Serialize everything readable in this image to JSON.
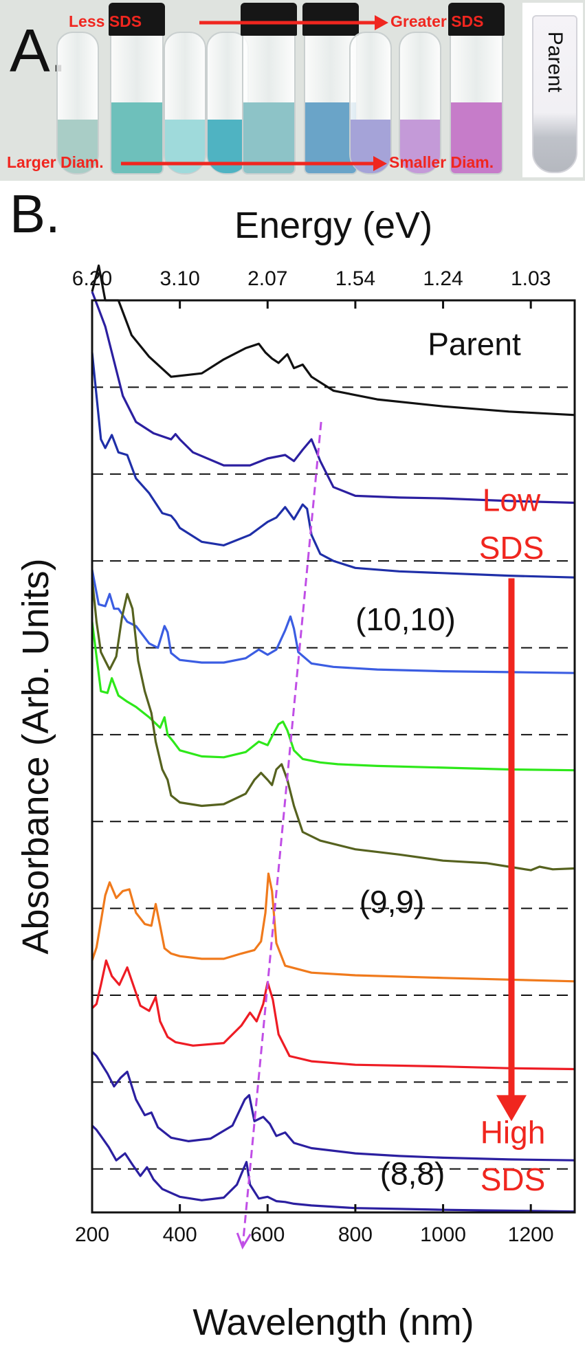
{
  "panel_a": {
    "label": "A.",
    "top_left_text": "Less SDS",
    "top_right_text": "Greater SDS",
    "bottom_left_text": "Larger Diam.",
    "bottom_right_text": "Smaller Diam.",
    "parent_text": "Parent",
    "arrow_color": "#f0261f",
    "vials": [
      {
        "liquid": "#a9cdc6",
        "cap": false,
        "shape": "cone"
      },
      {
        "liquid": "#6ec0bb",
        "cap": true,
        "shape": "bottle"
      },
      {
        "liquid": "#9fdadb",
        "cap": false,
        "shape": "cone"
      },
      {
        "liquid": "#4fb3c2",
        "cap": false,
        "shape": "cone"
      },
      {
        "liquid": "#8dc3c7",
        "cap": true,
        "shape": "bottle"
      },
      {
        "liquid": "#6aa4c8",
        "cap": true,
        "shape": "bottle"
      },
      {
        "liquid": "#a5a3d8",
        "cap": false,
        "shape": "cone"
      },
      {
        "liquid": "#c49ad8",
        "cap": false,
        "shape": "cone"
      },
      {
        "liquid": "#c67cc9",
        "cap": true,
        "shape": "bottle"
      }
    ]
  },
  "panel_b_label": "B.",
  "chart_data": {
    "type": "line",
    "title": "",
    "xlabel": "Wavelength (nm)",
    "ylabel": "Absorbance (Arb. Units)",
    "top_axis_label": "Energy (eV)",
    "xlim": [
      200,
      1300
    ],
    "x_ticks": [
      200,
      400,
      600,
      800,
      1000,
      1200
    ],
    "x_tick_labels": [
      "200",
      "400",
      "600",
      "800",
      "1000",
      "1200"
    ],
    "top_ticks_nm": [
      200,
      400,
      600,
      800,
      1000,
      1200
    ],
    "top_tick_labels": [
      "6.20",
      "3.10",
      "2.07",
      "1.54",
      "1.24",
      "1.03"
    ],
    "ylim": [
      0,
      10.5
    ],
    "grid": "dashed baselines per trace",
    "baselines": [
      9.5,
      8.5,
      7.5,
      6.5,
      5.5,
      4.5,
      3.5,
      2.5,
      1.5,
      0.5
    ],
    "series": [
      {
        "color": "#111111",
        "label": "Parent",
        "x": [
          200,
          215,
          230,
          260,
          290,
          330,
          380,
          450,
          500,
          550,
          580,
          595,
          610,
          625,
          645,
          660,
          680,
          700,
          750,
          850,
          1000,
          1150,
          1300
        ],
        "y": [
          10.6,
          10.9,
          10.5,
          10.5,
          10.1,
          9.85,
          9.62,
          9.66,
          9.82,
          9.95,
          10.0,
          9.9,
          9.83,
          9.78,
          9.88,
          9.72,
          9.76,
          9.62,
          9.46,
          9.36,
          9.28,
          9.22,
          9.18
        ]
      },
      {
        "color": "#2b1fa0",
        "label": "",
        "x": [
          200,
          215,
          230,
          250,
          270,
          300,
          340,
          380,
          390,
          400,
          430,
          500,
          560,
          600,
          640,
          660,
          680,
          700,
          720,
          750,
          800,
          900,
          1000,
          1150,
          1300
        ],
        "y": [
          10.6,
          10.4,
          10.2,
          9.8,
          9.4,
          9.1,
          8.97,
          8.9,
          8.96,
          8.9,
          8.75,
          8.6,
          8.6,
          8.68,
          8.72,
          8.65,
          8.78,
          8.9,
          8.65,
          8.35,
          8.25,
          8.23,
          8.22,
          8.19,
          8.17
        ]
      },
      {
        "color": "#1f2fa8",
        "label": "",
        "x": [
          200,
          210,
          220,
          230,
          245,
          260,
          280,
          300,
          330,
          360,
          380,
          390,
          400,
          450,
          500,
          560,
          600,
          620,
          640,
          660,
          680,
          690,
          700,
          720,
          750,
          800,
          900,
          1000,
          1150,
          1300
        ],
        "y": [
          9.9,
          9.4,
          8.9,
          8.8,
          8.95,
          8.75,
          8.72,
          8.45,
          8.28,
          8.05,
          8.02,
          7.96,
          7.88,
          7.72,
          7.68,
          7.8,
          7.95,
          8.0,
          8.12,
          7.98,
          8.15,
          8.1,
          7.8,
          7.58,
          7.5,
          7.42,
          7.38,
          7.36,
          7.33,
          7.31
        ]
      },
      {
        "color": "#3b5de2",
        "label": "(10,10)",
        "x": [
          200,
          215,
          230,
          240,
          250,
          260,
          280,
          300,
          330,
          350,
          365,
          372,
          380,
          400,
          450,
          500,
          550,
          580,
          600,
          620,
          640,
          652,
          660,
          670,
          700,
          750,
          850,
          1000,
          1150,
          1300
        ],
        "y": [
          7.4,
          7.0,
          6.98,
          7.12,
          6.95,
          6.95,
          6.8,
          6.75,
          6.55,
          6.5,
          6.75,
          6.68,
          6.44,
          6.36,
          6.33,
          6.33,
          6.38,
          6.48,
          6.42,
          6.48,
          6.7,
          6.86,
          6.72,
          6.45,
          6.32,
          6.28,
          6.25,
          6.23,
          6.22,
          6.21
        ]
      },
      {
        "color": "#2ee81a",
        "label": "",
        "x": [
          200,
          210,
          220,
          235,
          245,
          260,
          280,
          300,
          330,
          355,
          365,
          372,
          385,
          400,
          450,
          500,
          550,
          580,
          600,
          610,
          625,
          635,
          645,
          660,
          680,
          720,
          760,
          850,
          1000,
          1150,
          1300
        ],
        "y": [
          6.8,
          6.4,
          6.0,
          5.98,
          6.15,
          5.95,
          5.88,
          5.82,
          5.7,
          5.58,
          5.7,
          5.5,
          5.42,
          5.32,
          5.25,
          5.24,
          5.3,
          5.42,
          5.38,
          5.48,
          5.62,
          5.65,
          5.55,
          5.32,
          5.22,
          5.18,
          5.16,
          5.14,
          5.12,
          5.1,
          5.09
        ]
      },
      {
        "color": "#56621f",
        "label": "",
        "x": [
          200,
          210,
          220,
          230,
          240,
          255,
          268,
          280,
          292,
          305,
          320,
          335,
          345,
          360,
          372,
          380,
          400,
          450,
          500,
          550,
          570,
          585,
          600,
          610,
          620,
          632,
          645,
          660,
          680,
          720,
          800,
          900,
          1000,
          1100,
          1150,
          1200,
          1220,
          1250,
          1300
        ],
        "y": [
          7.3,
          6.8,
          6.45,
          6.35,
          6.25,
          6.4,
          6.85,
          7.12,
          6.95,
          6.35,
          6.0,
          5.75,
          5.42,
          5.1,
          4.98,
          4.8,
          4.72,
          4.68,
          4.7,
          4.82,
          4.98,
          5.06,
          4.98,
          4.92,
          5.1,
          5.16,
          4.98,
          4.68,
          4.38,
          4.28,
          4.18,
          4.12,
          4.05,
          4.02,
          3.98,
          3.94,
          3.98,
          3.95,
          3.96
        ]
      },
      {
        "color": "#f07a1c",
        "label": "(9,9)",
        "x": [
          200,
          210,
          220,
          230,
          240,
          255,
          270,
          285,
          300,
          320,
          335,
          345,
          355,
          365,
          380,
          400,
          450,
          500,
          540,
          570,
          585,
          595,
          602,
          610,
          620,
          640,
          700,
          800,
          1000,
          1150,
          1300
        ],
        "y": [
          2.9,
          3.05,
          3.35,
          3.65,
          3.8,
          3.62,
          3.7,
          3.72,
          3.45,
          3.32,
          3.3,
          3.55,
          3.3,
          3.04,
          2.98,
          2.95,
          2.92,
          2.92,
          2.98,
          3.02,
          3.12,
          3.45,
          3.9,
          3.7,
          3.1,
          2.84,
          2.76,
          2.73,
          2.7,
          2.68,
          2.66
        ]
      },
      {
        "color": "#ee1c24",
        "label": "",
        "x": [
          200,
          210,
          220,
          232,
          245,
          262,
          280,
          295,
          310,
          330,
          345,
          355,
          372,
          390,
          430,
          500,
          540,
          560,
          575,
          590,
          600,
          612,
          625,
          650,
          700,
          800,
          1000,
          1150,
          1300
        ],
        "y": [
          2.35,
          2.4,
          2.62,
          2.9,
          2.72,
          2.62,
          2.82,
          2.6,
          2.38,
          2.32,
          2.48,
          2.2,
          2.02,
          1.96,
          1.92,
          1.95,
          2.15,
          2.3,
          2.2,
          2.4,
          2.65,
          2.45,
          2.05,
          1.8,
          1.74,
          1.7,
          1.68,
          1.66,
          1.65
        ]
      },
      {
        "color": "#2b1fa0",
        "label": "",
        "x": [
          200,
          210,
          220,
          235,
          250,
          265,
          280,
          300,
          320,
          335,
          350,
          380,
          420,
          470,
          520,
          548,
          558,
          570,
          590,
          605,
          620,
          640,
          660,
          700,
          800,
          900,
          1000,
          1150,
          1300
        ],
        "y": [
          1.85,
          1.8,
          1.72,
          1.6,
          1.45,
          1.55,
          1.62,
          1.3,
          1.12,
          1.15,
          0.98,
          0.86,
          0.82,
          0.85,
          1.0,
          1.3,
          1.35,
          1.05,
          1.1,
          1.02,
          0.88,
          0.92,
          0.8,
          0.74,
          0.68,
          0.65,
          0.63,
          0.61,
          0.6
        ]
      },
      {
        "color": "#2b1fa0",
        "label": "(8,8)",
        "x": [
          200,
          210,
          220,
          238,
          255,
          275,
          292,
          310,
          325,
          340,
          360,
          400,
          450,
          500,
          530,
          545,
          552,
          560,
          580,
          600,
          620,
          640,
          660,
          700,
          800,
          900,
          1000,
          1150,
          1300
        ],
        "y": [
          1.0,
          0.95,
          0.88,
          0.75,
          0.6,
          0.68,
          0.55,
          0.42,
          0.52,
          0.38,
          0.27,
          0.18,
          0.14,
          0.17,
          0.32,
          0.5,
          0.58,
          0.32,
          0.16,
          0.18,
          0.13,
          0.12,
          0.1,
          0.08,
          0.05,
          0.04,
          0.03,
          0.02,
          0.01
        ]
      }
    ],
    "annotations": {
      "sds_low": "Low SDS",
      "sds_low_lines": [
        "Low",
        "SDS"
      ],
      "sds_high_lines": [
        "High",
        "SDS"
      ],
      "sds_arrow_color": "#f0261f",
      "shift_arrow_color": "#c04ee6",
      "shift_arrow_from": [
        722,
        9.1
      ],
      "shift_arrow_to": [
        543,
        -0.4
      ]
    }
  }
}
